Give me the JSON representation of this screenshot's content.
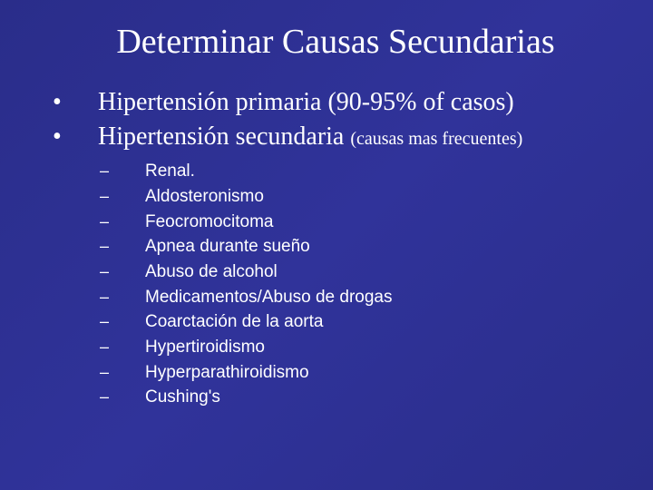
{
  "slide": {
    "title": "Determinar Causas Secundarias",
    "bullets": [
      {
        "marker": "•",
        "text": "Hipertensión primaria (90-95% of casos)",
        "subnote": ""
      },
      {
        "marker": "•",
        "text": "Hipertensión secundaria ",
        "subnote": "(causas mas frecuentes)"
      }
    ],
    "sub_marker": "–",
    "sub_bullets": [
      "Renal.",
      "Aldosteronismo",
      "Feocromocitoma",
      "Apnea durante sueño",
      "Abuso de alcohol",
      "Medicamentos/Abuso de drogas",
      "Coarctación de la aorta",
      "Hypertiroidismo",
      "Hyperparathiroidismo",
      "Cushing's"
    ],
    "background_color": "#2c2e8f",
    "text_color": "#ffffff",
    "title_fontsize": 38,
    "bullet_fontsize": 28,
    "subnote_fontsize": 20,
    "sub_bullet_fontsize": 19
  }
}
